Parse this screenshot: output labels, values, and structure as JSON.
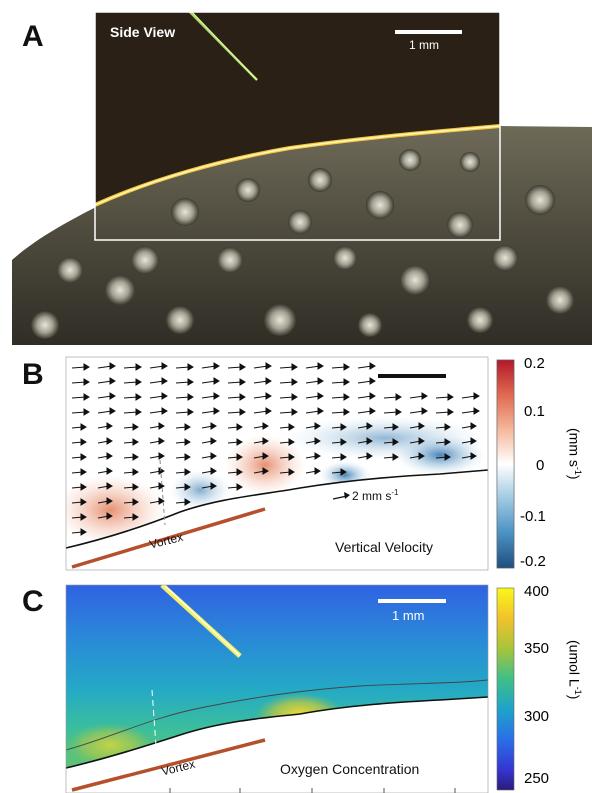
{
  "panels": {
    "a": {
      "letter": "A",
      "title": "Side View",
      "scalebar": "1 mm"
    },
    "b": {
      "letter": "B",
      "reference_vector": "2 mm s",
      "reference_vector_exp": "-1",
      "vortex_label": "Vortex",
      "map_title": "Vertical Velocity",
      "colorbar": {
        "ticks": [
          "0.2",
          "0.1",
          "0",
          "-0.1",
          "-0.2"
        ],
        "unit": "(mm s",
        "unit_exp": "-1",
        "unit_close": ")",
        "colors": [
          "#b2182b",
          "#e06a50",
          "#f4b79a",
          "#ffffff",
          "#9ec9e2",
          "#4a91c2",
          "#1d4e7f"
        ]
      }
    },
    "c": {
      "letter": "C",
      "scalebar": "1 mm",
      "vortex_label": "Vortex",
      "map_title": "Oxygen Concentration",
      "colorbar": {
        "ticks": [
          "400",
          "350",
          "300",
          "250"
        ],
        "unit": "(umol L",
        "unit_exp": "-1",
        "unit_close": ")",
        "colors": [
          "#f8f81a",
          "#f2c22a",
          "#a6c53b",
          "#3fbf87",
          "#1fa3c9",
          "#2a6fe8",
          "#3535d0",
          "#2c1b7a"
        ]
      }
    }
  }
}
